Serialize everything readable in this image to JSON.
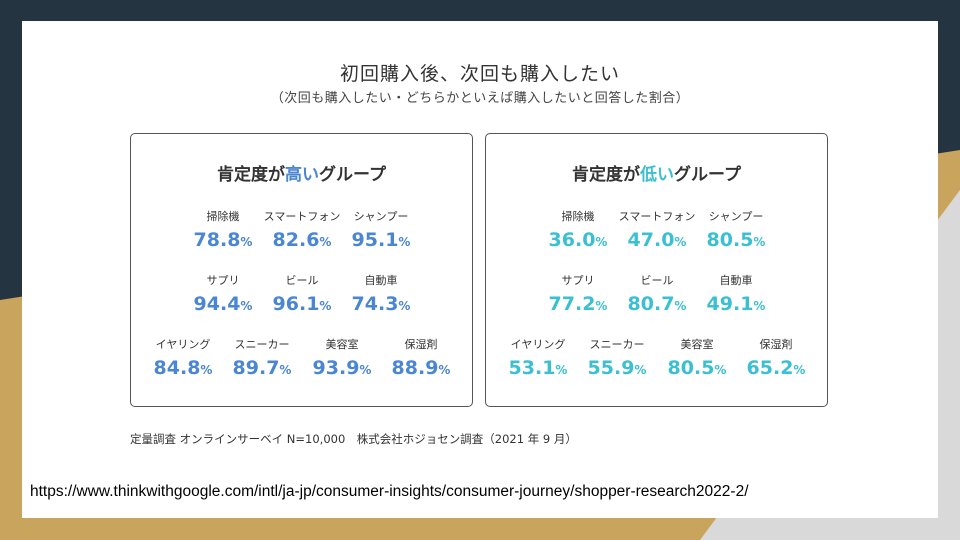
{
  "title": "初回購入後、次回も購入したい",
  "subtitle": "（次回も購入したい・どちらかといえば購入したいと回答した割合）",
  "groups": {
    "high": {
      "title_pre": "肯定度が",
      "title_hl": "高い",
      "title_post": "グループ",
      "items": [
        {
          "label": "掃除機",
          "value": "78.8"
        },
        {
          "label": "スマートフォン",
          "value": "82.6"
        },
        {
          "label": "シャンプー",
          "value": "95.1"
        },
        {
          "label": "サプリ",
          "value": "94.4"
        },
        {
          "label": "ビール",
          "value": "96.1"
        },
        {
          "label": "自動車",
          "value": "74.3"
        },
        {
          "label": "イヤリング",
          "value": "84.8"
        },
        {
          "label": "スニーカー",
          "value": "89.7"
        },
        {
          "label": "美容室",
          "value": "93.9"
        },
        {
          "label": "保湿剤",
          "value": "88.9"
        }
      ]
    },
    "low": {
      "title_pre": "肯定度が",
      "title_hl": "低い",
      "title_post": "グループ",
      "items": [
        {
          "label": "掃除機",
          "value": "36.0"
        },
        {
          "label": "スマートフォン",
          "value": "47.0"
        },
        {
          "label": "シャンプー",
          "value": "80.5"
        },
        {
          "label": "サプリ",
          "value": "77.2"
        },
        {
          "label": "ビール",
          "value": "80.7"
        },
        {
          "label": "自動車",
          "value": "49.1"
        },
        {
          "label": "イヤリング",
          "value": "53.1"
        },
        {
          "label": "スニーカー",
          "value": "55.9"
        },
        {
          "label": "美容室",
          "value": "80.5"
        },
        {
          "label": "保湿剤",
          "value": "65.2"
        }
      ]
    }
  },
  "unit": "%",
  "footnote": "定量調査 オンラインサーベイ N=10,000　株式会社ホジョセン調査（2021 年 9 月）",
  "source_url": "https://www.thinkwithgoogle.com/intl/ja-jp/consumer-insights/consumer-journey/shopper-research2022-2/",
  "colors": {
    "high": "#4a86d4",
    "low": "#3bbfd3",
    "background": "#243440",
    "accent_band": "#c9a45c"
  }
}
